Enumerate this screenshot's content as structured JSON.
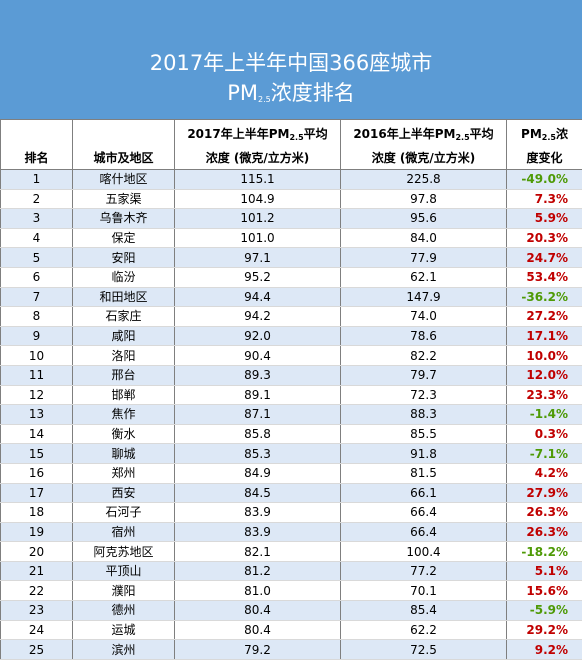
{
  "title": {
    "line1": "2017年上半年中国366座城市",
    "line2_main": "PM",
    "line2_sub": "2.5",
    "line2_rest": "浓度排名"
  },
  "headers": {
    "rank": "排名",
    "city": "城市及地区",
    "y2017_a": "2017年上半年PM",
    "y2017_sub": "2.5",
    "y2017_b": "平均",
    "y2017_c": "浓度 (微克/立方米)",
    "y2016_a": "2016年上半年PM",
    "y2016_sub": "2.5",
    "y2016_b": "平均",
    "y2016_c": "浓度 (微克/立方米)",
    "chg_a": "PM",
    "chg_sub": "2.5",
    "chg_b": "浓",
    "chg_c": "度变化"
  },
  "rows": [
    {
      "rank": "1",
      "city": "喀什地区",
      "v2017": "115.1",
      "v2016": "225.8",
      "change": "-49.0%",
      "dir": "down"
    },
    {
      "rank": "2",
      "city": "五家渠",
      "v2017": "104.9",
      "v2016": "97.8",
      "change": "7.3%",
      "dir": "up"
    },
    {
      "rank": "3",
      "city": "乌鲁木齐",
      "v2017": "101.2",
      "v2016": "95.6",
      "change": "5.9%",
      "dir": "up"
    },
    {
      "rank": "4",
      "city": "保定",
      "v2017": "101.0",
      "v2016": "84.0",
      "change": "20.3%",
      "dir": "up"
    },
    {
      "rank": "5",
      "city": "安阳",
      "v2017": "97.1",
      "v2016": "77.9",
      "change": "24.7%",
      "dir": "up"
    },
    {
      "rank": "6",
      "city": "临汾",
      "v2017": "95.2",
      "v2016": "62.1",
      "change": "53.4%",
      "dir": "up"
    },
    {
      "rank": "7",
      "city": "和田地区",
      "v2017": "94.4",
      "v2016": "147.9",
      "change": "-36.2%",
      "dir": "down"
    },
    {
      "rank": "8",
      "city": "石家庄",
      "v2017": "94.2",
      "v2016": "74.0",
      "change": "27.2%",
      "dir": "up"
    },
    {
      "rank": "9",
      "city": "咸阳",
      "v2017": "92.0",
      "v2016": "78.6",
      "change": "17.1%",
      "dir": "up"
    },
    {
      "rank": "10",
      "city": "洛阳",
      "v2017": "90.4",
      "v2016": "82.2",
      "change": "10.0%",
      "dir": "up"
    },
    {
      "rank": "11",
      "city": "邢台",
      "v2017": "89.3",
      "v2016": "79.7",
      "change": "12.0%",
      "dir": "up"
    },
    {
      "rank": "12",
      "city": "邯郸",
      "v2017": "89.1",
      "v2016": "72.3",
      "change": "23.3%",
      "dir": "up"
    },
    {
      "rank": "13",
      "city": "焦作",
      "v2017": "87.1",
      "v2016": "88.3",
      "change": "-1.4%",
      "dir": "down"
    },
    {
      "rank": "14",
      "city": "衡水",
      "v2017": "85.8",
      "v2016": "85.5",
      "change": "0.3%",
      "dir": "up"
    },
    {
      "rank": "15",
      "city": "聊城",
      "v2017": "85.3",
      "v2016": "91.8",
      "change": "-7.1%",
      "dir": "down"
    },
    {
      "rank": "16",
      "city": "郑州",
      "v2017": "84.9",
      "v2016": "81.5",
      "change": "4.2%",
      "dir": "up"
    },
    {
      "rank": "17",
      "city": "西安",
      "v2017": "84.5",
      "v2016": "66.1",
      "change": "27.9%",
      "dir": "up"
    },
    {
      "rank": "18",
      "city": "石河子",
      "v2017": "83.9",
      "v2016": "66.4",
      "change": "26.3%",
      "dir": "up"
    },
    {
      "rank": "19",
      "city": "宿州",
      "v2017": "83.9",
      "v2016": "66.4",
      "change": "26.3%",
      "dir": "up"
    },
    {
      "rank": "20",
      "city": "阿克苏地区",
      "v2017": "82.1",
      "v2016": "100.4",
      "change": "-18.2%",
      "dir": "down"
    },
    {
      "rank": "21",
      "city": "平顶山",
      "v2017": "81.2",
      "v2016": "77.2",
      "change": "5.1%",
      "dir": "up"
    },
    {
      "rank": "22",
      "city": "濮阳",
      "v2017": "81.0",
      "v2016": "70.1",
      "change": "15.6%",
      "dir": "up"
    },
    {
      "rank": "23",
      "city": "德州",
      "v2017": "80.4",
      "v2016": "85.4",
      "change": "-5.9%",
      "dir": "down"
    },
    {
      "rank": "24",
      "city": "运城",
      "v2017": "80.4",
      "v2016": "62.2",
      "change": "29.2%",
      "dir": "up"
    },
    {
      "rank": "25",
      "city": "滨州",
      "v2017": "79.2",
      "v2016": "72.5",
      "change": "9.2%",
      "dir": "up"
    }
  ]
}
